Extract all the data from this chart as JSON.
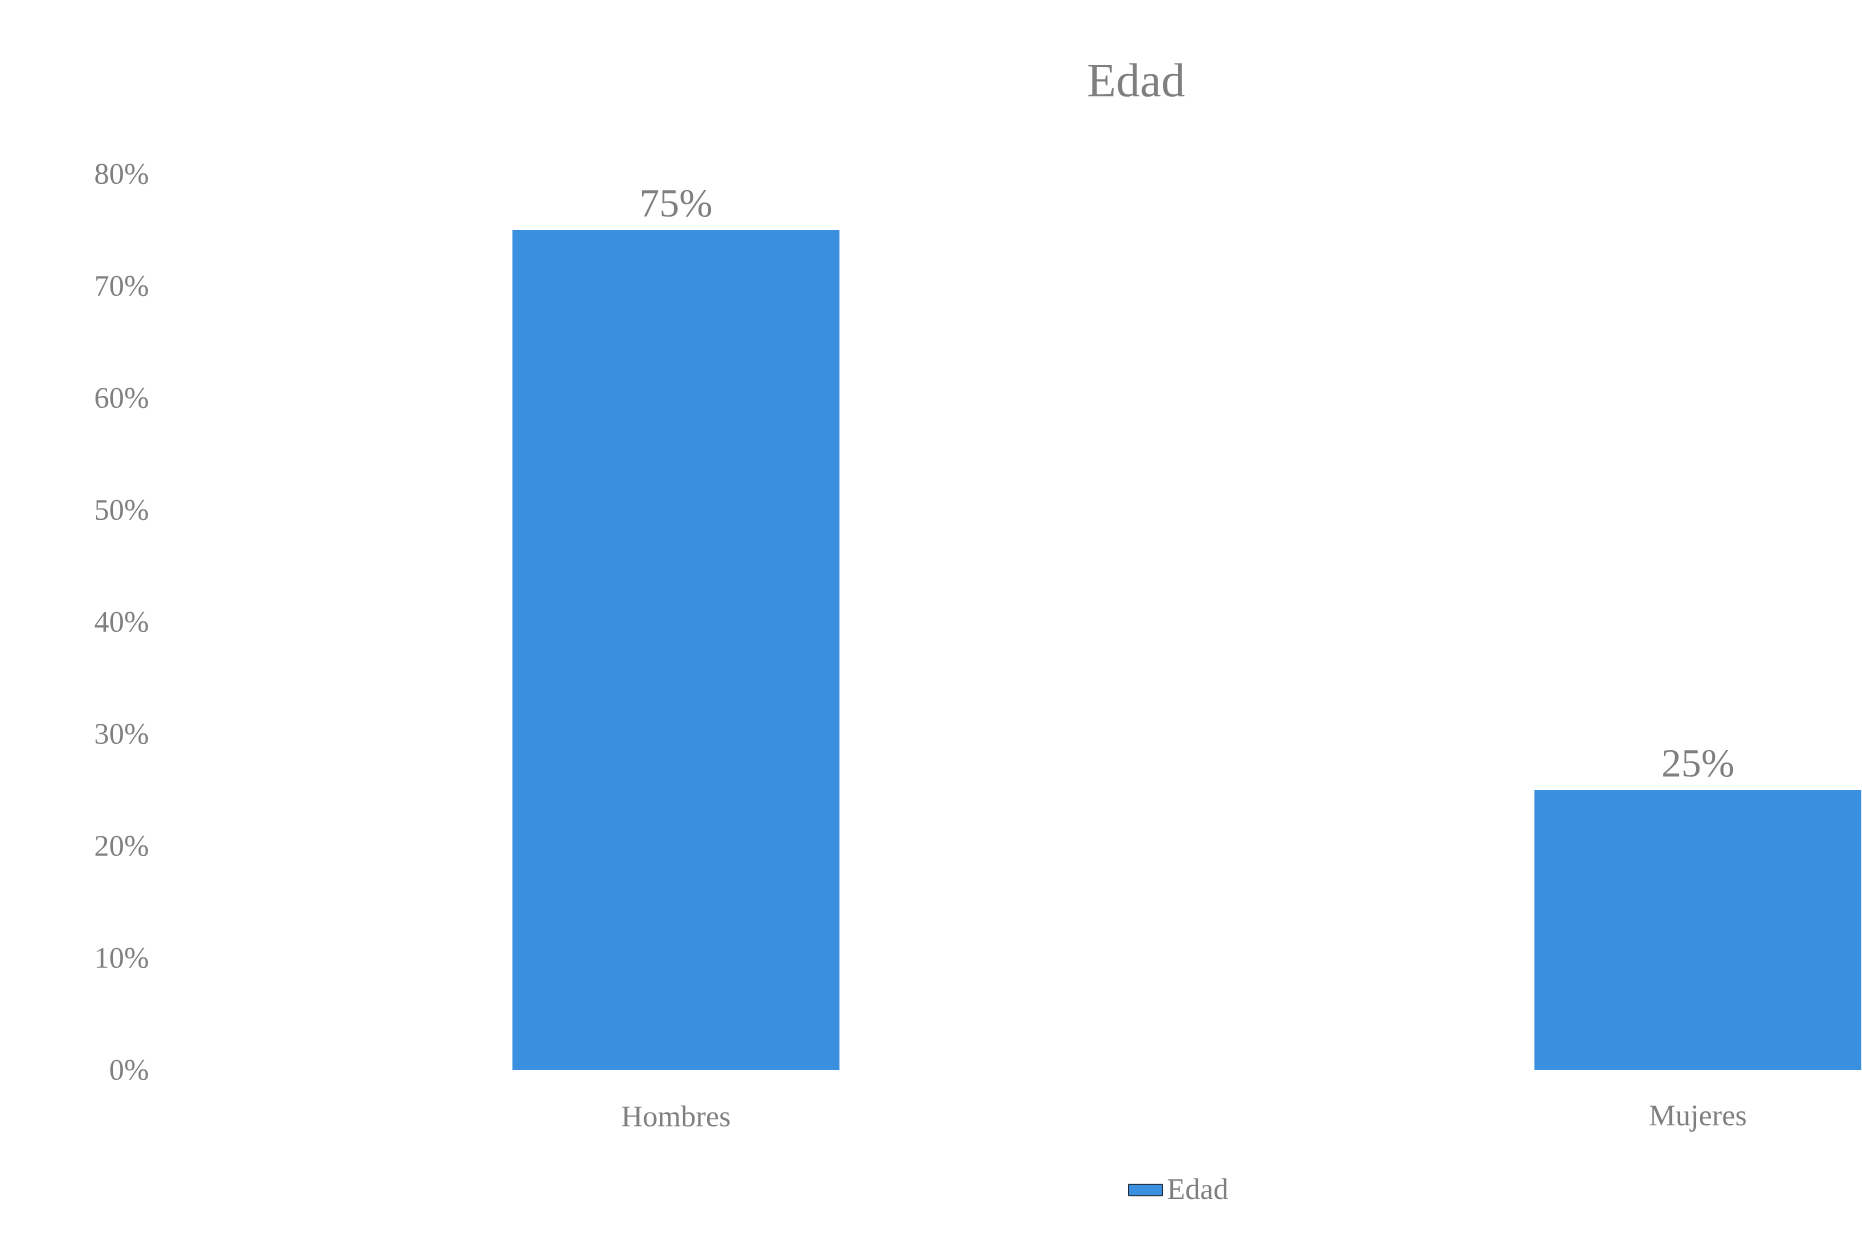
{
  "chart_data": {
    "type": "bar",
    "title": "Edad",
    "categories": [
      "Hombres",
      "Mujeres"
    ],
    "series": [
      {
        "name": "Edad",
        "color": "#3a8fdf",
        "values": [
          75,
          25
        ],
        "value_labels": [
          "75%",
          "25%"
        ]
      }
    ],
    "ylim": [
      0,
      80
    ],
    "yticks": [
      {
        "value": 0,
        "label": "0%"
      },
      {
        "value": 10,
        "label": "10%"
      },
      {
        "value": 20,
        "label": "20%"
      },
      {
        "value": 30,
        "label": "30%"
      },
      {
        "value": 40,
        "label": "40%"
      },
      {
        "value": 50,
        "label": "50%"
      },
      {
        "value": 60,
        "label": "60%"
      },
      {
        "value": 70,
        "label": "70%"
      },
      {
        "value": 80,
        "label": "80%"
      }
    ],
    "grid": false,
    "legend": "bottom"
  }
}
